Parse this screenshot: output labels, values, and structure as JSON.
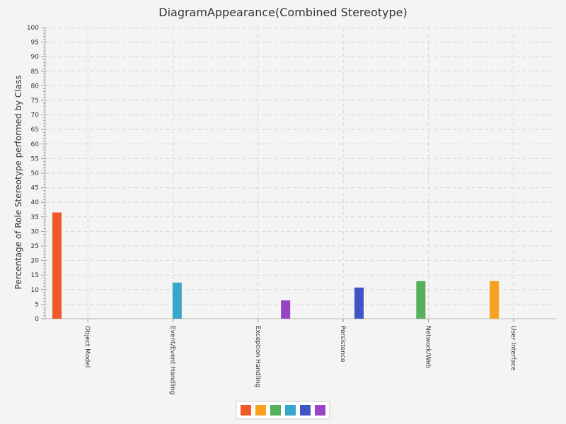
{
  "chart_data": {
    "type": "bar",
    "title": "DiagramAppearance(Combined Stereotype)",
    "xlabel": "",
    "ylabel": "Percentage of Role Stereotype performed by Class",
    "ylim": [
      0,
      100
    ],
    "y_major_step": 5,
    "y_minor_step": 1,
    "grid": true,
    "legend_position": "bottom",
    "categories": [
      "Object Model",
      "Event/Event Handling",
      "Exception Handling",
      "Persistence",
      "Network/Web",
      "User Interface"
    ],
    "series": [
      {
        "color": "#f05a28",
        "values": [
          36.5,
          0,
          0,
          0,
          0,
          0
        ]
      },
      {
        "color": "#f8a11f",
        "values": [
          0,
          0,
          0,
          0,
          0,
          12.9
        ]
      },
      {
        "color": "#56b05a",
        "values": [
          0,
          0,
          0,
          0,
          12.9,
          0
        ]
      },
      {
        "color": "#3aa6c9",
        "values": [
          0,
          12.4,
          0,
          0,
          0,
          0
        ]
      },
      {
        "color": "#4055c4",
        "values": [
          0,
          0,
          0,
          10.7,
          0,
          0
        ]
      },
      {
        "color": "#9745c5",
        "values": [
          0,
          0,
          6.3,
          0,
          0,
          0
        ]
      }
    ]
  }
}
